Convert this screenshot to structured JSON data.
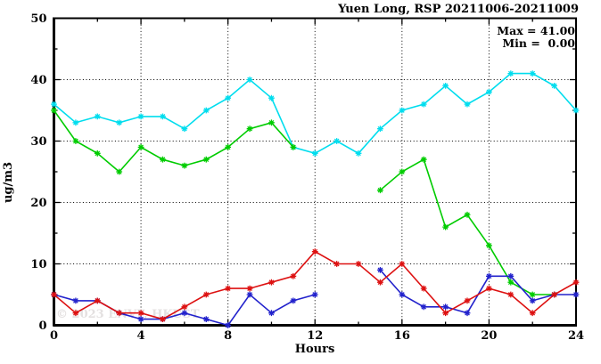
{
  "title": "Yuen Long, RSP 20211006-20211009",
  "annotation": {
    "max_line": "Max = 41.00",
    "min_line": "Min =  0.00"
  },
  "watermark": "© 2023 ENVF, HKUST",
  "chart_data": {
    "type": "line",
    "title": "Yuen Long, RSP 20211006-20211009",
    "xlabel": "Hours",
    "ylabel": "ug/m3",
    "xlim": [
      0,
      24
    ],
    "ylim": [
      0,
      50
    ],
    "x_major_ticks": [
      0,
      4,
      8,
      12,
      16,
      20,
      24
    ],
    "x_minor_step": 2,
    "y_major_ticks": [
      0,
      10,
      20,
      30,
      40,
      50
    ],
    "y_minor_step": 5,
    "grid_x": [
      4,
      8,
      12,
      16,
      20
    ],
    "grid_y": [
      10,
      20,
      30,
      40
    ],
    "grid_style": "dotted",
    "legend_position": "none",
    "x": [
      0,
      1,
      2,
      3,
      4,
      5,
      6,
      7,
      8,
      9,
      10,
      11,
      12,
      13,
      14,
      15,
      16,
      17,
      18,
      19,
      20,
      21,
      22,
      23,
      24
    ],
    "series": [
      {
        "name": "series-cyan",
        "color": "#00DDEE",
        "values": [
          36,
          33,
          34,
          33,
          34,
          34,
          32,
          35,
          37,
          40,
          37,
          29,
          28,
          30,
          28,
          32,
          35,
          36,
          39,
          36,
          38,
          41,
          41,
          39,
          35
        ]
      },
      {
        "name": "series-green",
        "color": "#00CC00",
        "values": [
          35,
          30,
          28,
          25,
          29,
          27,
          26,
          27,
          29,
          32,
          33,
          29,
          null,
          null,
          null,
          22,
          25,
          27,
          16,
          18,
          13,
          7,
          5,
          5,
          null
        ]
      },
      {
        "name": "series-blue",
        "color": "#2222CC",
        "values": [
          5,
          4,
          4,
          2,
          1,
          1,
          2,
          1,
          0,
          5,
          2,
          4,
          5,
          null,
          null,
          9,
          5,
          3,
          3,
          2,
          8,
          8,
          4,
          5,
          5
        ]
      },
      {
        "name": "series-red",
        "color": "#DD1111",
        "values": [
          5,
          2,
          4,
          2,
          2,
          1,
          3,
          5,
          6,
          6,
          7,
          8,
          12,
          10,
          10,
          7,
          10,
          6,
          2,
          4,
          6,
          5,
          2,
          5,
          7
        ]
      }
    ],
    "stats": {
      "max": "41.00",
      "min": "0.00"
    }
  }
}
